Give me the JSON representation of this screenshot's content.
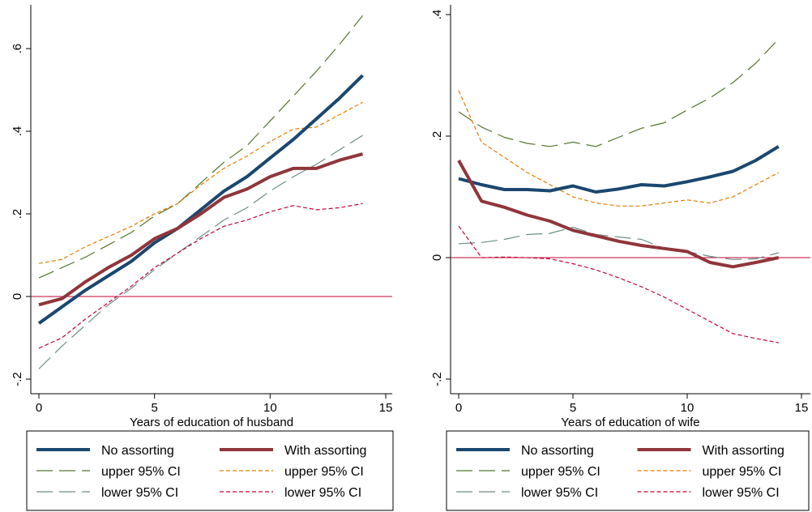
{
  "chart_data": [
    {
      "type": "line",
      "xlabel": "Years of education of husband",
      "ylabel": "",
      "xlim": [
        0,
        15
      ],
      "ylim": [
        -0.2,
        0.7
      ],
      "xticks": [
        0,
        5,
        10,
        15
      ],
      "xtick_labels": [
        "0",
        "5",
        "10",
        "15"
      ],
      "yticks": [
        -0.2,
        0,
        0.2,
        0.4,
        0.6
      ],
      "ytick_labels": [
        "-.2",
        "0",
        ".2",
        ".4",
        ".6"
      ],
      "reference_line": 0,
      "grid": false,
      "legend": "bottom",
      "x": [
        0,
        1,
        2,
        3,
        4,
        5,
        6,
        7,
        8,
        9,
        10,
        11,
        12,
        13,
        14
      ],
      "series": [
        {
          "name": "No assorting",
          "color": "#1a476f",
          "style": "solid-thick",
          "values": [
            -0.065,
            -0.025,
            0.015,
            0.05,
            0.085,
            0.13,
            0.165,
            0.21,
            0.255,
            0.29,
            0.335,
            0.38,
            0.43,
            0.48,
            0.535
          ]
        },
        {
          "name": "With assorting",
          "color": "#90353b",
          "style": "solid-thick",
          "values": [
            -0.02,
            -0.005,
            0.035,
            0.07,
            0.1,
            0.14,
            0.165,
            0.2,
            0.24,
            0.26,
            0.29,
            0.31,
            0.31,
            0.33,
            0.345
          ]
        },
        {
          "name": "upper 95% CI",
          "color": "#55752f",
          "style": "longdash",
          "values": [
            0.045,
            0.07,
            0.095,
            0.125,
            0.155,
            0.195,
            0.225,
            0.275,
            0.325,
            0.365,
            0.425,
            0.485,
            0.545,
            0.61,
            0.68
          ]
        },
        {
          "name": "upper 95% CI",
          "color": "#e37e00",
          "style": "shortdash",
          "values": [
            0.08,
            0.09,
            0.12,
            0.145,
            0.17,
            0.2,
            0.225,
            0.27,
            0.31,
            0.34,
            0.375,
            0.405,
            0.41,
            0.44,
            0.47
          ]
        },
        {
          "name": "lower 95% CI",
          "color": "#6e8e84",
          "style": "longdash",
          "values": [
            -0.175,
            -0.12,
            -0.07,
            -0.02,
            0.02,
            0.065,
            0.105,
            0.145,
            0.185,
            0.215,
            0.255,
            0.29,
            0.32,
            0.355,
            0.39
          ]
        },
        {
          "name": "lower 95% CI",
          "color": "#c10534",
          "style": "shortdash",
          "values": [
            -0.125,
            -0.1,
            -0.055,
            -0.015,
            0.025,
            0.07,
            0.105,
            0.14,
            0.17,
            0.185,
            0.205,
            0.22,
            0.21,
            0.215,
            0.225
          ]
        }
      ],
      "legend_entries": [
        {
          "label": "No assorting",
          "series": 0
        },
        {
          "label": "With assorting",
          "series": 1
        },
        {
          "label": "upper 95% CI",
          "series": 2
        },
        {
          "label": "upper 95% CI",
          "series": 3
        },
        {
          "label": "lower 95% CI",
          "series": 4
        },
        {
          "label": "lower 95% CI",
          "series": 5
        }
      ]
    },
    {
      "type": "line",
      "xlabel": "Years of education of wife",
      "ylabel": "",
      "xlim": [
        0,
        15
      ],
      "ylim": [
        -0.22,
        0.42
      ],
      "xticks": [
        0,
        5,
        10,
        15
      ],
      "xtick_labels": [
        "0",
        "5",
        "10",
        "15"
      ],
      "yticks": [
        -0.2,
        0,
        0.2,
        0.4
      ],
      "ytick_labels": [
        "-.2",
        "0",
        ".2",
        ".4"
      ],
      "reference_line": 0,
      "grid": false,
      "legend": "bottom",
      "x": [
        0,
        1,
        2,
        3,
        4,
        5,
        6,
        7,
        8,
        9,
        10,
        11,
        12,
        13,
        14
      ],
      "series": [
        {
          "name": "No assorting",
          "color": "#1a476f",
          "style": "solid-thick",
          "values": [
            0.13,
            0.12,
            0.112,
            0.112,
            0.11,
            0.118,
            0.108,
            0.113,
            0.12,
            0.118,
            0.125,
            0.133,
            0.142,
            0.16,
            0.183
          ]
        },
        {
          "name": "With assorting",
          "color": "#90353b",
          "style": "solid-thick",
          "values": [
            0.16,
            0.093,
            0.083,
            0.07,
            0.06,
            0.045,
            0.036,
            0.027,
            0.02,
            0.015,
            0.01,
            -0.008,
            -0.015,
            -0.008,
            0.0
          ]
        },
        {
          "name": "upper 95% CI",
          "color": "#55752f",
          "style": "longdash",
          "values": [
            0.24,
            0.215,
            0.198,
            0.188,
            0.183,
            0.19,
            0.183,
            0.198,
            0.213,
            0.222,
            0.243,
            0.263,
            0.288,
            0.32,
            0.36
          ]
        },
        {
          "name": "upper 95% CI",
          "color": "#e37e00",
          "style": "shortdash",
          "values": [
            0.275,
            0.19,
            0.165,
            0.14,
            0.12,
            0.1,
            0.09,
            0.085,
            0.085,
            0.09,
            0.095,
            0.09,
            0.1,
            0.12,
            0.14
          ]
        },
        {
          "name": "lower 95% CI",
          "color": "#6e8e84",
          "style": "longdash",
          "values": [
            0.023,
            0.025,
            0.03,
            0.038,
            0.04,
            0.05,
            0.038,
            0.034,
            0.03,
            0.015,
            0.01,
            0.002,
            -0.003,
            -0.002,
            0.008
          ]
        },
        {
          "name": "lower 95% CI",
          "color": "#c10534",
          "style": "shortdash",
          "values": [
            0.052,
            0.0,
            0.001,
            0.0,
            -0.002,
            -0.01,
            -0.02,
            -0.033,
            -0.048,
            -0.065,
            -0.085,
            -0.105,
            -0.125,
            -0.133,
            -0.14
          ]
        }
      ],
      "legend_entries": [
        {
          "label": "No assorting",
          "series": 0
        },
        {
          "label": "With assorting",
          "series": 1
        },
        {
          "label": "upper 95% CI",
          "series": 2
        },
        {
          "label": "upper 95% CI",
          "series": 3
        },
        {
          "label": "lower 95% CI",
          "series": 4
        },
        {
          "label": "lower 95% CI",
          "series": 5
        }
      ]
    }
  ]
}
